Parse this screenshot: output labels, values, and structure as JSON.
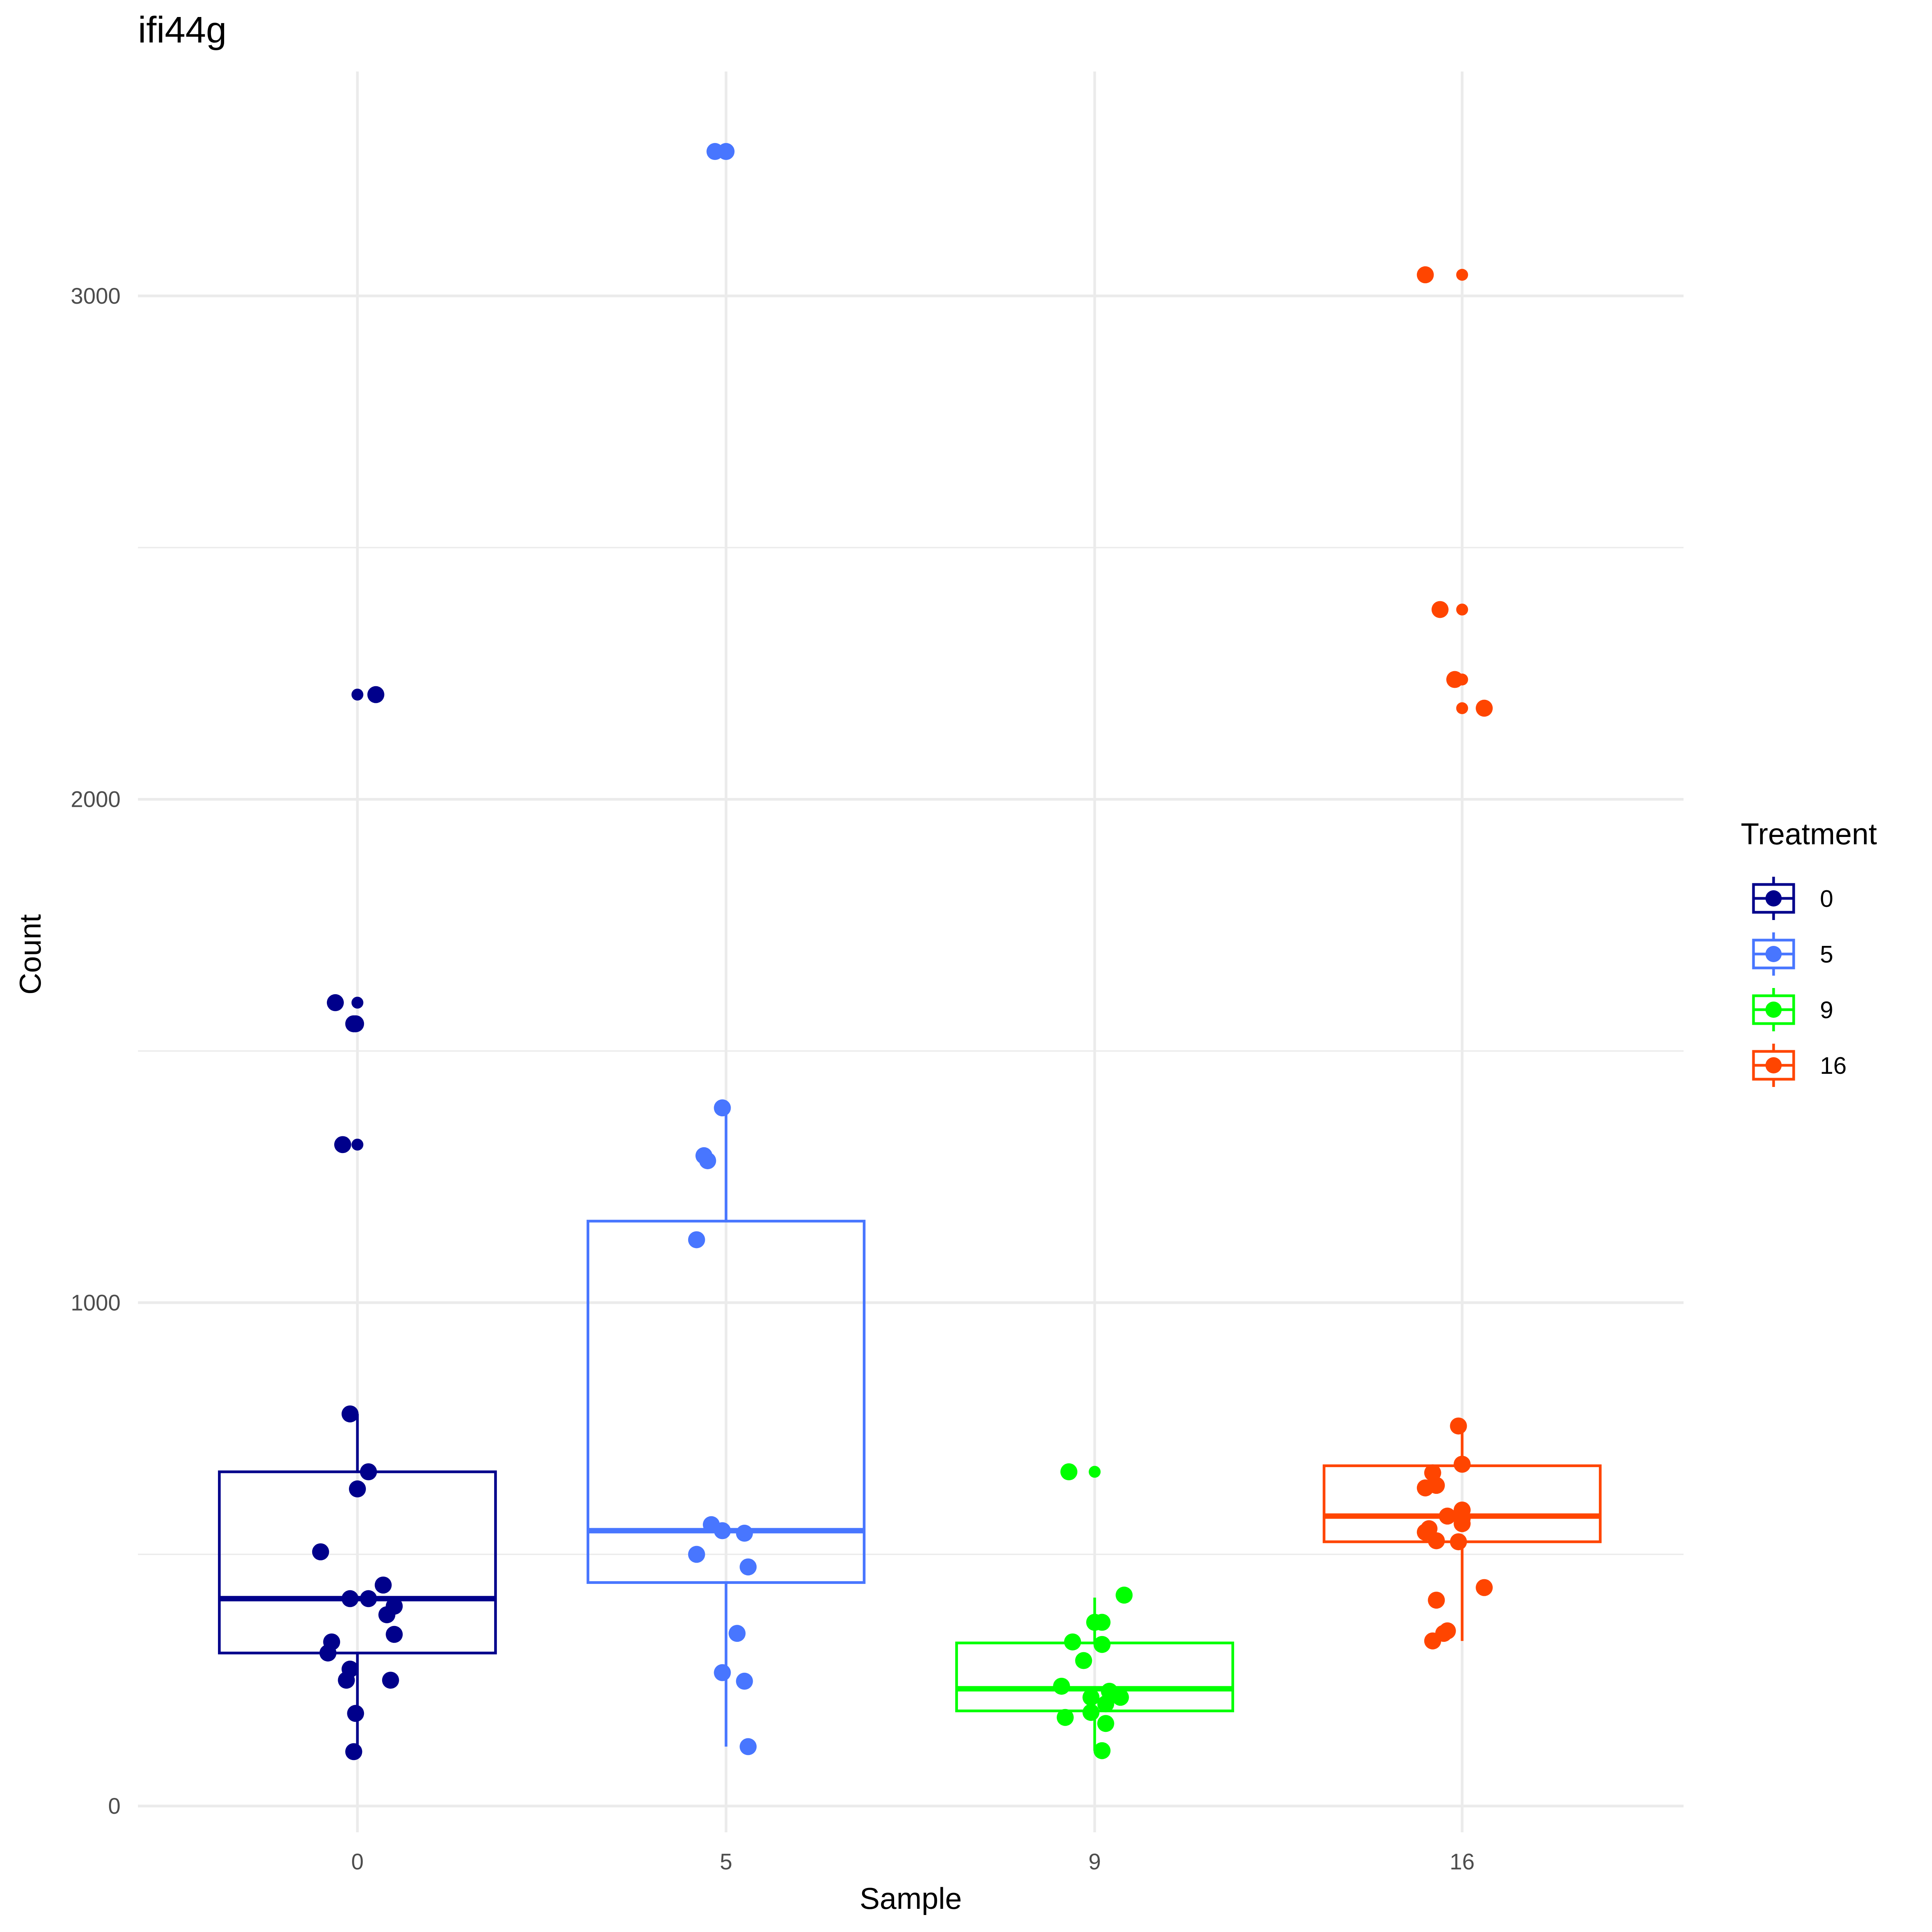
{
  "chart_data": {
    "type": "boxplot",
    "title": "ifi44g",
    "xlabel": "Sample",
    "ylabel": "Count",
    "categories": [
      "0",
      "5",
      "9",
      "16"
    ],
    "ylim": [
      -150,
      3500
    ],
    "y_ticks": [
      "0",
      "1000",
      "2000",
      "3000"
    ],
    "y_tick_values": [
      0,
      1000,
      2000,
      3000
    ],
    "y_minor_values": [
      500,
      1500,
      2500
    ],
    "grid": true,
    "legend": {
      "title": "Treatment",
      "position": "right",
      "entries": [
        "0",
        "5",
        "9",
        "16"
      ]
    },
    "series": [
      {
        "name": "0",
        "color": "#00008B",
        "box": {
          "lower_whisker": 108,
          "q1": 304,
          "median": 412,
          "q3": 664,
          "upper_whisker": 779
        },
        "points": [
          {
            "y": 2208,
            "j": 0.0,
            "s": 0.7
          },
          {
            "y": 2208,
            "j": 0.05,
            "s": 1
          },
          {
            "y": 1596,
            "j": -0.06,
            "s": 1
          },
          {
            "y": 1596,
            "j": 0.0,
            "s": 0.7
          },
          {
            "y": 1554,
            "j": -0.01,
            "s": 1
          },
          {
            "y": 1554,
            "j": -0.005,
            "s": 1
          },
          {
            "y": 1314,
            "j": -0.04,
            "s": 1
          },
          {
            "y": 1314,
            "j": 0.0,
            "s": 0.7
          },
          {
            "y": 779,
            "j": -0.02,
            "s": 1
          },
          {
            "y": 664,
            "j": 0.03,
            "s": 1
          },
          {
            "y": 630,
            "j": 0.0,
            "s": 1
          },
          {
            "y": 505,
            "j": -0.1,
            "s": 1
          },
          {
            "y": 439,
            "j": 0.07,
            "s": 1
          },
          {
            "y": 412,
            "j": -0.02,
            "s": 1
          },
          {
            "y": 412,
            "j": 0.03,
            "s": 1
          },
          {
            "y": 397,
            "j": 0.1,
            "s": 1
          },
          {
            "y": 380,
            "j": 0.08,
            "s": 1
          },
          {
            "y": 341,
            "j": 0.1,
            "s": 1
          },
          {
            "y": 304,
            "j": -0.08,
            "s": 1
          },
          {
            "y": 326,
            "j": -0.07,
            "s": 1
          },
          {
            "y": 272,
            "j": -0.02,
            "s": 1
          },
          {
            "y": 250,
            "j": -0.03,
            "s": 1
          },
          {
            "y": 250,
            "j": 0.09,
            "s": 1
          },
          {
            "y": 184,
            "j": -0.005,
            "s": 1
          },
          {
            "y": 108,
            "j": -0.01,
            "s": 1
          }
        ]
      },
      {
        "name": "5",
        "color": "#4876FF",
        "box": {
          "lower_whisker": 118,
          "q1": 444,
          "median": 547,
          "q3": 1162,
          "upper_whisker": 1387
        },
        "points": [
          {
            "y": 3287,
            "j": -0.03,
            "s": 1
          },
          {
            "y": 3287,
            "j": 0.0,
            "s": 1
          },
          {
            "y": 1387,
            "j": -0.01,
            "s": 1
          },
          {
            "y": 1292,
            "j": -0.06,
            "s": 1
          },
          {
            "y": 1282,
            "j": -0.05,
            "s": 1
          },
          {
            "y": 1125,
            "j": -0.08,
            "s": 1
          },
          {
            "y": 559,
            "j": -0.04,
            "s": 1
          },
          {
            "y": 547,
            "j": -0.01,
            "s": 1
          },
          {
            "y": 542,
            "j": 0.05,
            "s": 1
          },
          {
            "y": 500,
            "j": -0.08,
            "s": 1
          },
          {
            "y": 475,
            "j": 0.06,
            "s": 1
          },
          {
            "y": 343,
            "j": 0.03,
            "s": 1
          },
          {
            "y": 265,
            "j": -0.01,
            "s": 1
          },
          {
            "y": 248,
            "j": 0.05,
            "s": 1
          },
          {
            "y": 118,
            "j": 0.06,
            "s": 1
          }
        ]
      },
      {
        "name": "9",
        "color": "#00FF00",
        "box": {
          "lower_whisker": 110,
          "q1": 189,
          "median": 233,
          "q3": 324,
          "upper_whisker": 414
        },
        "points": [
          {
            "y": 664,
            "j": -0.07,
            "s": 1
          },
          {
            "y": 664,
            "j": 0.0,
            "s": 0.7
          },
          {
            "y": 419,
            "j": 0.08,
            "s": 1
          },
          {
            "y": 365,
            "j": 0.0,
            "s": 1
          },
          {
            "y": 365,
            "j": 0.02,
            "s": 1
          },
          {
            "y": 326,
            "j": -0.06,
            "s": 1
          },
          {
            "y": 321,
            "j": 0.02,
            "s": 1
          },
          {
            "y": 289,
            "j": -0.03,
            "s": 1
          },
          {
            "y": 238,
            "j": -0.09,
            "s": 1
          },
          {
            "y": 228,
            "j": 0.04,
            "s": 1
          },
          {
            "y": 216,
            "j": -0.01,
            "s": 1
          },
          {
            "y": 216,
            "j": 0.07,
            "s": 1
          },
          {
            "y": 203,
            "j": 0.03,
            "s": 1
          },
          {
            "y": 186,
            "j": -0.01,
            "s": 1
          },
          {
            "y": 176,
            "j": -0.08,
            "s": 1
          },
          {
            "y": 164,
            "j": 0.03,
            "s": 1
          },
          {
            "y": 110,
            "j": 0.02,
            "s": 1
          }
        ]
      },
      {
        "name": "16",
        "color": "#FF4500",
        "box": {
          "lower_whisker": 328,
          "q1": 525,
          "median": 576,
          "q3": 676,
          "upper_whisker": 755
        },
        "points": [
          {
            "y": 3042,
            "j": -0.1,
            "s": 1
          },
          {
            "y": 3042,
            "j": 0.0,
            "s": 0.7
          },
          {
            "y": 2377,
            "j": -0.06,
            "s": 1
          },
          {
            "y": 2377,
            "j": 0.0,
            "s": 0.7
          },
          {
            "y": 2238,
            "j": -0.02,
            "s": 1
          },
          {
            "y": 2238,
            "j": 0.0,
            "s": 0.7
          },
          {
            "y": 2181,
            "j": 0.0,
            "s": 0.7
          },
          {
            "y": 2181,
            "j": 0.06,
            "s": 1
          },
          {
            "y": 755,
            "j": -0.01,
            "s": 1
          },
          {
            "y": 679,
            "j": 0.0,
            "s": 1
          },
          {
            "y": 662,
            "j": -0.08,
            "s": 1
          },
          {
            "y": 637,
            "j": -0.07,
            "s": 1
          },
          {
            "y": 632,
            "j": -0.1,
            "s": 1
          },
          {
            "y": 588,
            "j": 0.0,
            "s": 1
          },
          {
            "y": 576,
            "j": -0.04,
            "s": 1
          },
          {
            "y": 571,
            "j": 0.0,
            "s": 1
          },
          {
            "y": 561,
            "j": 0.0,
            "s": 1
          },
          {
            "y": 551,
            "j": -0.09,
            "s": 1
          },
          {
            "y": 544,
            "j": -0.1,
            "s": 1
          },
          {
            "y": 527,
            "j": -0.07,
            "s": 1
          },
          {
            "y": 525,
            "j": -0.01,
            "s": 1
          },
          {
            "y": 434,
            "j": 0.06,
            "s": 1
          },
          {
            "y": 409,
            "j": -0.07,
            "s": 1
          },
          {
            "y": 348,
            "j": -0.04,
            "s": 1
          },
          {
            "y": 343,
            "j": -0.05,
            "s": 1
          },
          {
            "y": 328,
            "j": -0.08,
            "s": 1
          }
        ]
      }
    ]
  }
}
